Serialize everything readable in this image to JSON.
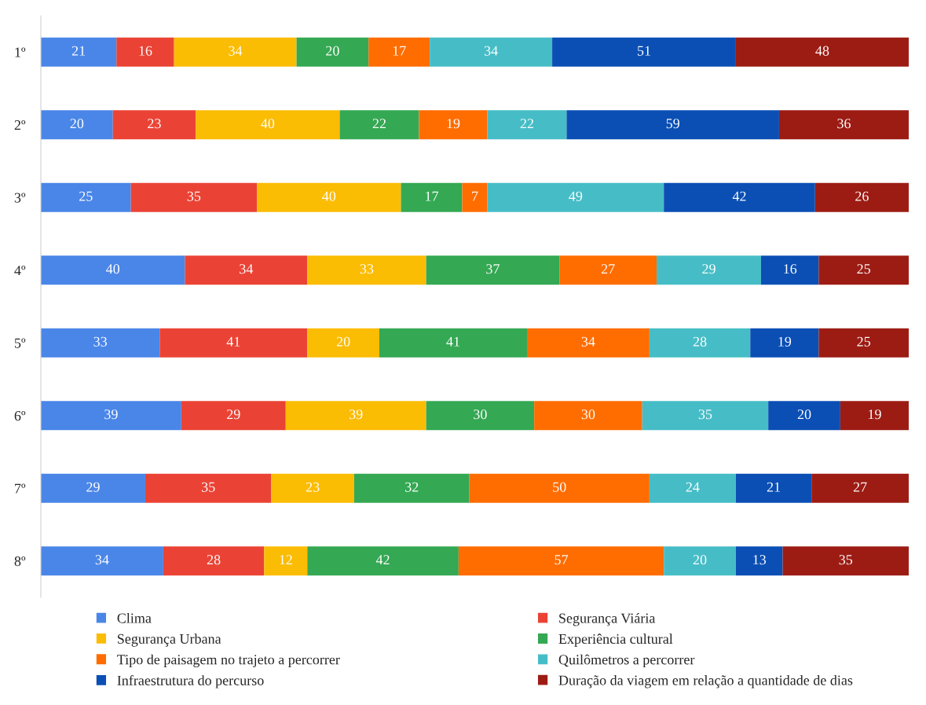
{
  "chart_data": {
    "type": "bar",
    "orientation": "horizontal",
    "stacked": true,
    "data_labels": true,
    "grid": false,
    "legend": "bottom",
    "tick_labels": "y",
    "categories": [
      "1º",
      "2º",
      "3º",
      "4º",
      "5º",
      "6º",
      "7º",
      "8º"
    ],
    "series": [
      {
        "name": "Clima",
        "color": "#4a86e8",
        "values": [
          21,
          20,
          25,
          40,
          33,
          39,
          29,
          34
        ]
      },
      {
        "name": "Segurança Viária",
        "color": "#ea4335",
        "values": [
          16,
          23,
          35,
          34,
          41,
          29,
          35,
          28
        ]
      },
      {
        "name": "Segurança Urbana",
        "color": "#fbbc04",
        "values": [
          34,
          40,
          40,
          33,
          20,
          39,
          23,
          12
        ]
      },
      {
        "name": "Experiência cultural",
        "color": "#34a853",
        "values": [
          20,
          22,
          17,
          37,
          41,
          30,
          32,
          42
        ]
      },
      {
        "name": "Tipo de paisagem no trajeto a percorrer",
        "color": "#ff6d01",
        "values": [
          17,
          19,
          7,
          27,
          34,
          30,
          50,
          57
        ]
      },
      {
        "name": "Quilômetros a percorrer",
        "color": "#46bdc6",
        "values": [
          34,
          22,
          49,
          29,
          28,
          35,
          24,
          20
        ]
      },
      {
        "name": "Infraestrutura do percurso",
        "color": "#0b4fb5",
        "values": [
          51,
          59,
          42,
          16,
          19,
          20,
          21,
          13
        ]
      },
      {
        "name": "Duração da viagem em relação a quantidade de dias",
        "color": "#9c1c14",
        "values": [
          48,
          36,
          26,
          25,
          25,
          19,
          27,
          35
        ]
      }
    ]
  }
}
